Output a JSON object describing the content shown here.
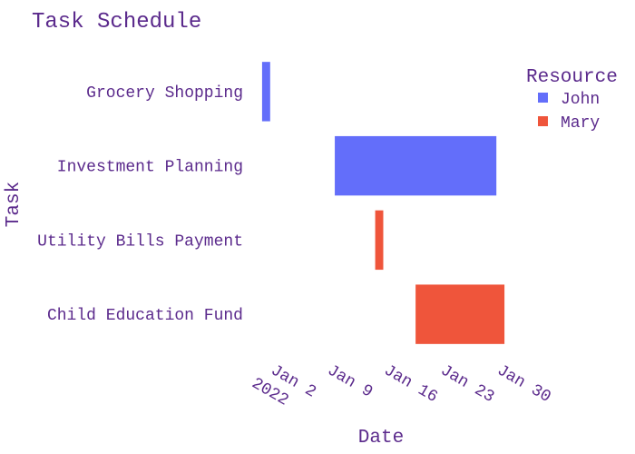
{
  "chart_data": {
    "type": "gantt",
    "title": "Task Schedule",
    "xlabel": "Date",
    "ylabel": "Task",
    "x_axis": {
      "type": "date",
      "range": [
        "2021-12-31T00:00",
        "2022-02-01T00:00"
      ],
      "ticks": [
        {
          "value": "2022-01-02",
          "label": "Jan 2",
          "sublabel": "2022"
        },
        {
          "value": "2022-01-09",
          "label": "Jan 9",
          "sublabel": ""
        },
        {
          "value": "2022-01-16",
          "label": "Jan 16",
          "sublabel": ""
        },
        {
          "value": "2022-01-23",
          "label": "Jan 23",
          "sublabel": ""
        },
        {
          "value": "2022-01-30",
          "label": "Jan 30",
          "sublabel": ""
        }
      ],
      "tick_angle": 30
    },
    "categories": [
      "Grocery Shopping",
      "Investment Planning",
      "Utility Bills Payment",
      "Child Education Fund"
    ],
    "tasks": [
      {
        "task": "Grocery Shopping",
        "resource": "John",
        "start": "2022-01-01",
        "end": "2022-01-02"
      },
      {
        "task": "Investment Planning",
        "resource": "John",
        "start": "2022-01-10",
        "end": "2022-01-30"
      },
      {
        "task": "Utility Bills Payment",
        "resource": "Mary",
        "start": "2022-01-15",
        "end": "2022-01-16"
      },
      {
        "task": "Child Education Fund",
        "resource": "Mary",
        "start": "2022-01-20",
        "end": "2022-01-31"
      }
    ],
    "legend": {
      "title": "Resource",
      "position": "top-right",
      "items": [
        {
          "name": "John",
          "color": "#636efa"
        },
        {
          "name": "Mary",
          "color": "#ef553b"
        }
      ]
    },
    "grid": false
  },
  "colors": {
    "text": "#5b2a8c",
    "background": "#ffffff"
  }
}
